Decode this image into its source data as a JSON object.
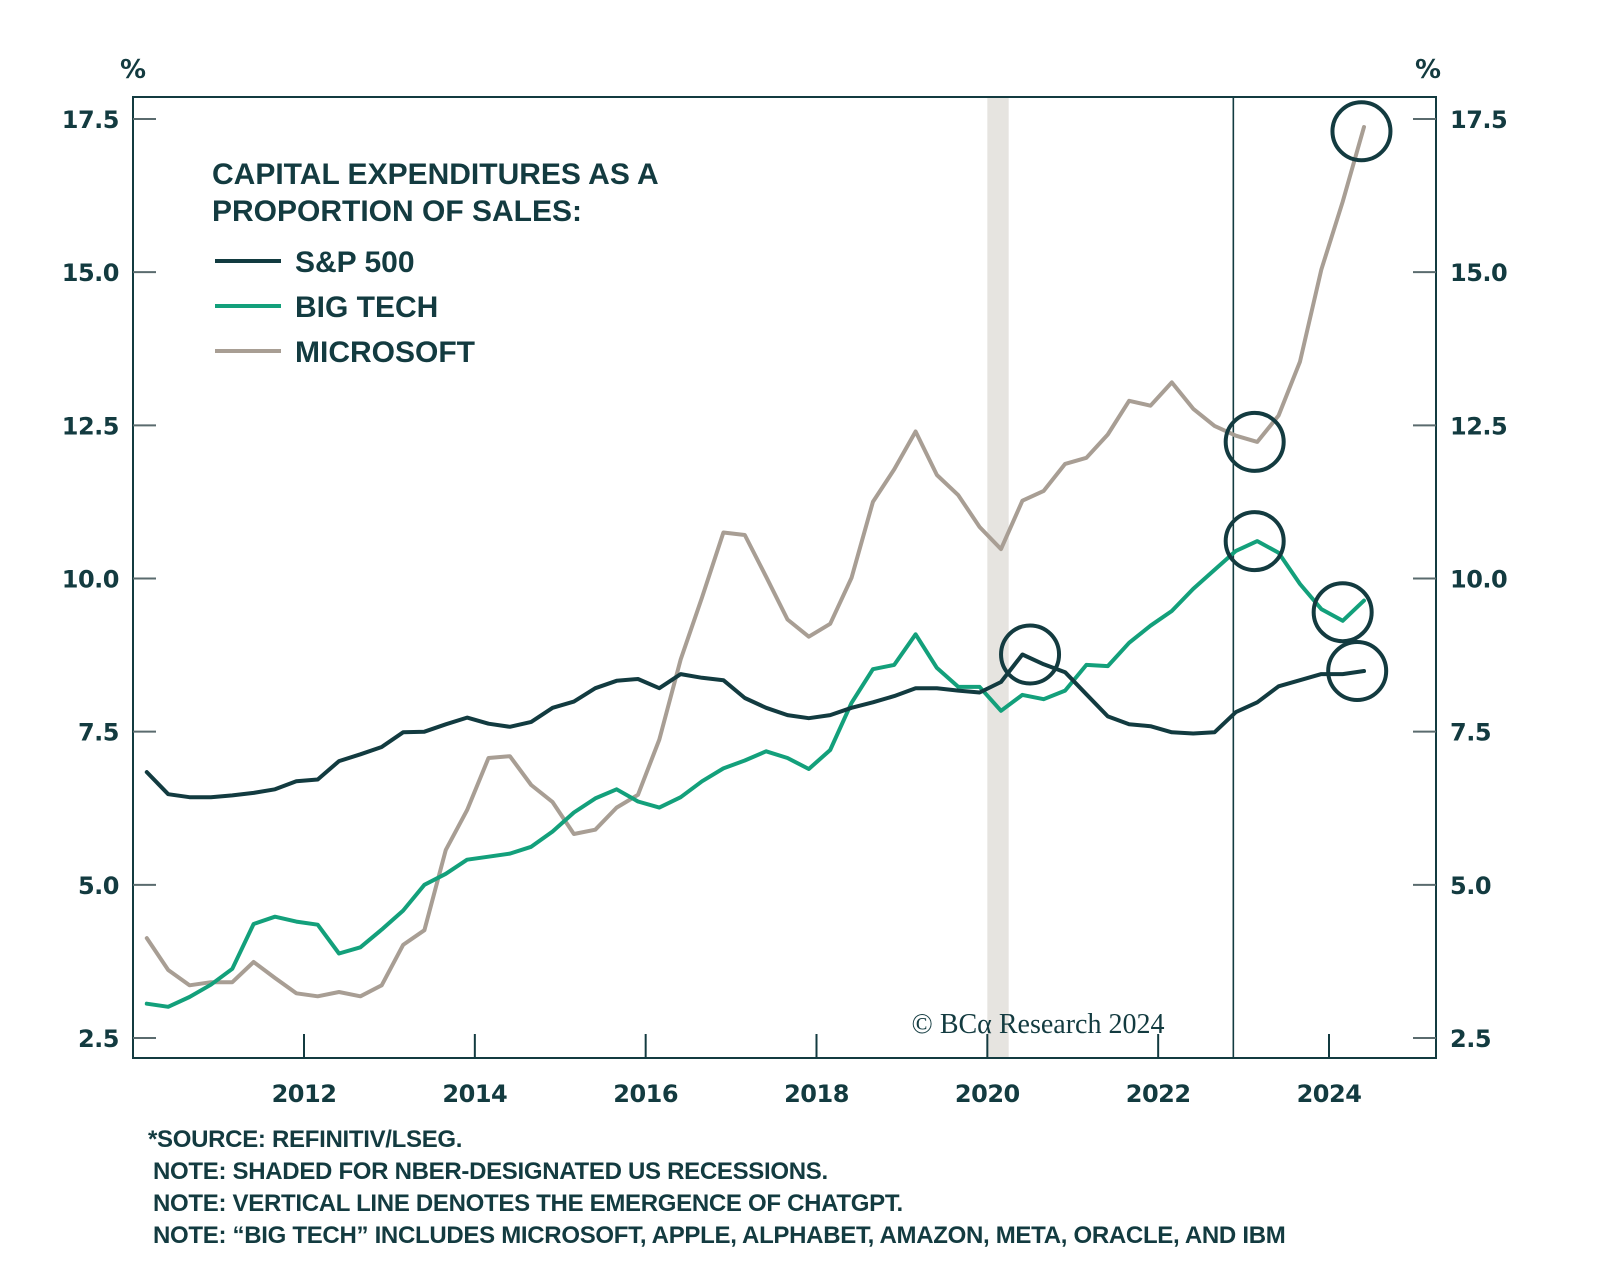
{
  "chart_data": {
    "type": "line",
    "title": "CAPITAL EXPENDITURES AS A PROPORTION OF SALES:",
    "title_lines": [
      "CAPITAL EXPENDITURES AS A",
      "PROPORTION OF SALES:"
    ],
    "ylabel_left": "%",
    "ylabel_right": "%",
    "ylim": [
      2.2,
      17.9
    ],
    "yticks": [
      2.5,
      5.0,
      7.5,
      10.0,
      12.5,
      15.0,
      17.5
    ],
    "ytick_labels": [
      "2.5",
      "5.0",
      "7.5",
      "10.0",
      "12.5",
      "15.0",
      "17.5"
    ],
    "xlim": [
      2009.99,
      2025.25
    ],
    "xticks": [
      2012,
      2014,
      2016,
      2018,
      2020,
      2022,
      2024
    ],
    "xtick_labels": [
      "2012",
      "2014",
      "2016",
      "2018",
      "2020",
      "2022",
      "2024"
    ],
    "legend_position": "top-left",
    "grid": false,
    "recession_shading": [
      {
        "start": 2020.0,
        "end": 2020.25
      }
    ],
    "event_line": {
      "x": 2022.88,
      "label": "Emergence of ChatGPT"
    },
    "x_start": 2010.16,
    "x_step": 0.25,
    "series": [
      {
        "name": "S&P 500",
        "color": "#123b40",
        "values": [
          6.84,
          6.48,
          6.43,
          6.43,
          6.46,
          6.5,
          6.56,
          6.69,
          6.72,
          7.02,
          7.13,
          7.25,
          7.49,
          7.5,
          7.62,
          7.73,
          7.63,
          7.58,
          7.66,
          7.89,
          7.99,
          8.21,
          8.33,
          8.36,
          8.21,
          8.44,
          8.38,
          8.34,
          8.05,
          7.89,
          7.77,
          7.72,
          7.77,
          7.89,
          7.98,
          8.08,
          8.21,
          8.21,
          8.17,
          8.14,
          8.31,
          8.76,
          8.6,
          8.47,
          8.11,
          7.75,
          7.62,
          7.59,
          7.49,
          7.47,
          7.49,
          7.82,
          7.98,
          8.24,
          8.34,
          8.44,
          8.44,
          8.49
        ]
      },
      {
        "name": "BIG TECH",
        "color": "#13a07b",
        "values": [
          3.06,
          3.01,
          3.17,
          3.37,
          3.63,
          4.36,
          4.48,
          4.4,
          4.35,
          3.88,
          3.98,
          4.27,
          4.58,
          5.0,
          5.18,
          5.41,
          5.46,
          5.51,
          5.62,
          5.87,
          6.18,
          6.41,
          6.56,
          6.36,
          6.26,
          6.43,
          6.69,
          6.9,
          7.03,
          7.18,
          7.07,
          6.89,
          7.2,
          7.97,
          8.52,
          8.59,
          9.09,
          8.54,
          8.23,
          8.23,
          7.84,
          8.1,
          8.03,
          8.17,
          8.59,
          8.57,
          8.95,
          9.23,
          9.47,
          9.83,
          10.14,
          10.45,
          10.61,
          10.42,
          9.91,
          9.5,
          9.31,
          9.64
        ]
      },
      {
        "name": "MICROSOFT",
        "color": "#a89e94",
        "values": [
          4.13,
          3.61,
          3.36,
          3.41,
          3.41,
          3.74,
          3.48,
          3.23,
          3.18,
          3.25,
          3.18,
          3.36,
          4.02,
          4.26,
          5.57,
          6.22,
          7.07,
          7.1,
          6.63,
          6.35,
          5.83,
          5.9,
          6.26,
          6.47,
          7.37,
          8.68,
          9.69,
          10.75,
          10.71,
          10.03,
          9.33,
          9.05,
          9.26,
          10.01,
          11.25,
          11.78,
          12.4,
          11.69,
          11.36,
          10.84,
          10.48,
          11.27,
          11.43,
          11.87,
          11.97,
          12.35,
          12.9,
          12.82,
          13.2,
          12.77,
          12.49,
          12.33,
          12.23,
          12.66,
          13.54,
          15.04,
          16.15,
          17.37
        ]
      }
    ],
    "highlight_circles": [
      {
        "series": "S&P 500",
        "x": 2020.5,
        "y": 8.76
      },
      {
        "series": "MICROSOFT",
        "x": 2023.13,
        "y": 12.23
      },
      {
        "series": "BIG TECH",
        "x": 2023.13,
        "y": 10.61
      },
      {
        "series": "BIG TECH",
        "x": 2024.16,
        "y": 9.45
      },
      {
        "series": "S&P 500",
        "x": 2024.33,
        "y": 8.49
      },
      {
        "series": "MICROSOFT",
        "x": 2024.38,
        "y": 17.3
      }
    ],
    "annotations": [
      "© BCα Research 2024"
    ]
  },
  "copyright": "© BCα Research 2024",
  "footnotes": [
    "*SOURCE: REFINITIV/LSEG.",
    "NOTE: SHADED FOR NBER-DESIGNATED US RECESSIONS.",
    "NOTE: VERTICAL LINE DENOTES THE EMERGENCE OF CHATGPT.",
    "NOTE: “BIG TECH” INCLUDES MICROSOFT, APPLE, ALPHABET, AMAZON, META, ORACLE, AND IBM"
  ],
  "colors": {
    "axis": "#133b40",
    "recession": "#e6e4e0"
  }
}
